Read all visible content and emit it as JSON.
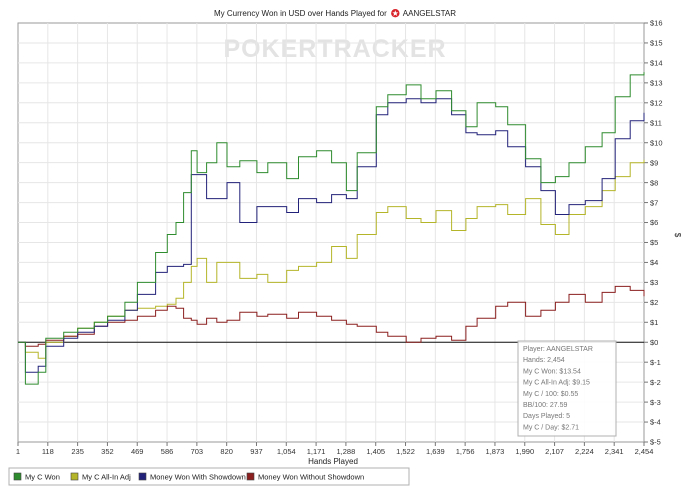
{
  "chart_data": {
    "type": "line",
    "title": "My Currency Won in USD over Hands Played for",
    "title_player": "AANGELSTAR",
    "watermark": "POKERTRACKER",
    "xlabel": "Hands Played",
    "ylabel": "$",
    "xlim": [
      1,
      2454
    ],
    "ylim": [
      -5,
      16
    ],
    "x_ticks": [
      "1",
      "118",
      "235",
      "352",
      "469",
      "586",
      "703",
      "820",
      "937",
      "1,054",
      "1,171",
      "1,288",
      "1,405",
      "1,522",
      "1,639",
      "1,756",
      "1,873",
      "1,990",
      "2,107",
      "2,224",
      "2,341",
      "2,454"
    ],
    "y_ticks": [
      "$16",
      "$15",
      "$14",
      "$13",
      "$12",
      "$11",
      "$10",
      "$9",
      "$8",
      "$7",
      "$6",
      "$5",
      "$4",
      "$3",
      "$2",
      "$1",
      "$0",
      "$-1",
      "$-2",
      "$-3",
      "$-4",
      "$-5"
    ],
    "series": [
      {
        "name": "My C Won",
        "color": "#2e8b2e",
        "points": [
          [
            1,
            0
          ],
          [
            30,
            -2.1
          ],
          [
            80,
            -1.5
          ],
          [
            110,
            0.2
          ],
          [
            180,
            0.5
          ],
          [
            235,
            0.7
          ],
          [
            300,
            1.0
          ],
          [
            352,
            1.3
          ],
          [
            420,
            2.0
          ],
          [
            469,
            3.0
          ],
          [
            540,
            4.5
          ],
          [
            586,
            5.4
          ],
          [
            620,
            6.0
          ],
          [
            650,
            7.5
          ],
          [
            680,
            9.6
          ],
          [
            703,
            8.5
          ],
          [
            740,
            9.0
          ],
          [
            780,
            10.0
          ],
          [
            820,
            8.8
          ],
          [
            870,
            9.1
          ],
          [
            937,
            8.5
          ],
          [
            980,
            9.0
          ],
          [
            1054,
            8.2
          ],
          [
            1100,
            9.3
          ],
          [
            1171,
            9.6
          ],
          [
            1230,
            9.0
          ],
          [
            1288,
            7.6
          ],
          [
            1330,
            9.5
          ],
          [
            1405,
            11.8
          ],
          [
            1450,
            12.4
          ],
          [
            1522,
            12.9
          ],
          [
            1580,
            12.2
          ],
          [
            1639,
            12.6
          ],
          [
            1700,
            11.6
          ],
          [
            1756,
            10.8
          ],
          [
            1800,
            12.0
          ],
          [
            1873,
            11.8
          ],
          [
            1920,
            10.9
          ],
          [
            1990,
            9.2
          ],
          [
            2050,
            8.0
          ],
          [
            2107,
            8.3
          ],
          [
            2160,
            9.0
          ],
          [
            2224,
            9.8
          ],
          [
            2290,
            10.5
          ],
          [
            2341,
            12.3
          ],
          [
            2400,
            13.4
          ],
          [
            2454,
            13.54
          ]
        ]
      },
      {
        "name": "My C All-In Adj",
        "color": "#b5b52a",
        "points": [
          [
            1,
            0
          ],
          [
            30,
            -0.5
          ],
          [
            80,
            -0.8
          ],
          [
            110,
            0.0
          ],
          [
            180,
            0.3
          ],
          [
            235,
            0.7
          ],
          [
            300,
            1.0
          ],
          [
            352,
            1.3
          ],
          [
            420,
            1.6
          ],
          [
            469,
            1.7
          ],
          [
            540,
            1.8
          ],
          [
            586,
            1.9
          ],
          [
            620,
            2.2
          ],
          [
            650,
            3.0
          ],
          [
            680,
            3.8
          ],
          [
            703,
            4.2
          ],
          [
            740,
            3.0
          ],
          [
            780,
            4.0
          ],
          [
            820,
            4.0
          ],
          [
            870,
            3.2
          ],
          [
            937,
            3.4
          ],
          [
            980,
            3.0
          ],
          [
            1054,
            3.6
          ],
          [
            1100,
            3.8
          ],
          [
            1171,
            4.0
          ],
          [
            1230,
            4.8
          ],
          [
            1288,
            4.2
          ],
          [
            1330,
            5.4
          ],
          [
            1405,
            6.5
          ],
          [
            1450,
            6.8
          ],
          [
            1522,
            6.2
          ],
          [
            1580,
            6.0
          ],
          [
            1639,
            6.6
          ],
          [
            1700,
            5.6
          ],
          [
            1756,
            6.2
          ],
          [
            1800,
            6.8
          ],
          [
            1873,
            6.9
          ],
          [
            1920,
            6.4
          ],
          [
            1990,
            7.2
          ],
          [
            2050,
            5.9
          ],
          [
            2107,
            5.4
          ],
          [
            2160,
            6.4
          ],
          [
            2224,
            6.8
          ],
          [
            2290,
            7.6
          ],
          [
            2341,
            8.3
          ],
          [
            2400,
            9.0
          ],
          [
            2454,
            9.15
          ]
        ]
      },
      {
        "name": "Money Won With Showdown",
        "color": "#22227a",
        "points": [
          [
            1,
            0
          ],
          [
            30,
            -1.5
          ],
          [
            80,
            -1.2
          ],
          [
            110,
            -0.2
          ],
          [
            180,
            0.2
          ],
          [
            235,
            0.5
          ],
          [
            300,
            0.8
          ],
          [
            352,
            1.1
          ],
          [
            420,
            1.6
          ],
          [
            469,
            2.4
          ],
          [
            540,
            3.5
          ],
          [
            586,
            3.8
          ],
          [
            620,
            3.8
          ],
          [
            650,
            3.9
          ],
          [
            680,
            8.4
          ],
          [
            703,
            8.4
          ],
          [
            740,
            7.2
          ],
          [
            780,
            7.2
          ],
          [
            820,
            8.0
          ],
          [
            870,
            6.0
          ],
          [
            937,
            6.8
          ],
          [
            980,
            6.8
          ],
          [
            1054,
            6.5
          ],
          [
            1100,
            7.2
          ],
          [
            1171,
            7.0
          ],
          [
            1230,
            7.4
          ],
          [
            1288,
            7.2
          ],
          [
            1330,
            8.8
          ],
          [
            1405,
            11.4
          ],
          [
            1450,
            12.0
          ],
          [
            1522,
            12.2
          ],
          [
            1580,
            12.0
          ],
          [
            1639,
            12.2
          ],
          [
            1700,
            11.4
          ],
          [
            1756,
            10.5
          ],
          [
            1800,
            10.4
          ],
          [
            1873,
            10.6
          ],
          [
            1920,
            9.8
          ],
          [
            1990,
            8.8
          ],
          [
            2050,
            7.6
          ],
          [
            2107,
            6.4
          ],
          [
            2160,
            6.9
          ],
          [
            2224,
            7.1
          ],
          [
            2290,
            8.2
          ],
          [
            2341,
            10.2
          ],
          [
            2400,
            11.1
          ],
          [
            2454,
            11.5
          ]
        ]
      },
      {
        "name": "Money Won Without Showdown",
        "color": "#8b1f1f",
        "points": [
          [
            1,
            0
          ],
          [
            30,
            -0.2
          ],
          [
            80,
            -0.1
          ],
          [
            110,
            0.1
          ],
          [
            180,
            0.3
          ],
          [
            235,
            0.4
          ],
          [
            300,
            0.8
          ],
          [
            352,
            1.0
          ],
          [
            420,
            1.1
          ],
          [
            469,
            1.3
          ],
          [
            540,
            1.6
          ],
          [
            586,
            1.8
          ],
          [
            620,
            1.7
          ],
          [
            650,
            1.2
          ],
          [
            680,
            1.1
          ],
          [
            703,
            0.9
          ],
          [
            740,
            1.2
          ],
          [
            780,
            1.0
          ],
          [
            820,
            1.1
          ],
          [
            870,
            1.5
          ],
          [
            937,
            1.3
          ],
          [
            980,
            1.4
          ],
          [
            1054,
            1.2
          ],
          [
            1100,
            1.5
          ],
          [
            1171,
            1.3
          ],
          [
            1230,
            1.1
          ],
          [
            1288,
            0.9
          ],
          [
            1330,
            0.8
          ],
          [
            1405,
            0.5
          ],
          [
            1450,
            0.3
          ],
          [
            1522,
            0.0
          ],
          [
            1580,
            0.2
          ],
          [
            1639,
            0.3
          ],
          [
            1700,
            0.1
          ],
          [
            1756,
            0.8
          ],
          [
            1800,
            1.2
          ],
          [
            1873,
            1.8
          ],
          [
            1920,
            2.0
          ],
          [
            1990,
            1.3
          ],
          [
            2050,
            1.6
          ],
          [
            2107,
            2.0
          ],
          [
            2160,
            2.4
          ],
          [
            2224,
            2.0
          ],
          [
            2290,
            2.5
          ],
          [
            2341,
            2.8
          ],
          [
            2400,
            2.6
          ],
          [
            2454,
            2.3
          ]
        ]
      }
    ],
    "stats_box": [
      "Player: AANGELSTAR",
      "Hands: 2,454",
      "My C Won: $13.54",
      "My C All-In Adj: $9.15",
      "My C / 100: $0.55",
      "BB/100: 27.59",
      "Days Played: 5",
      "My C / Day: $2.71"
    ],
    "legend_position": "bottom",
    "grid": true
  }
}
